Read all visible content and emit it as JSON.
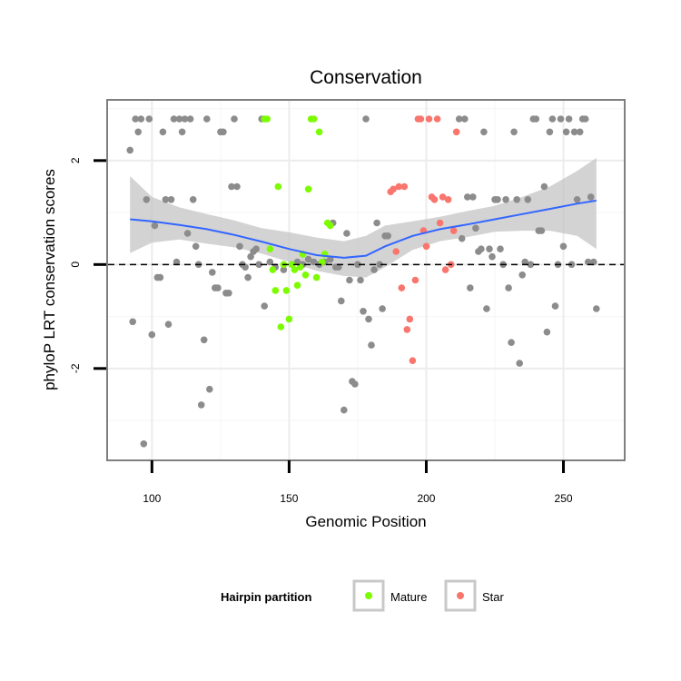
{
  "chart_data": {
    "type": "scatter",
    "title": "Conservation",
    "xlabel": "Genomic Position",
    "ylabel": "phyloP LRT conservation scores",
    "xlim": [
      84,
      272
    ],
    "ylim": [
      -3.75,
      3.15
    ],
    "xticks": [
      {
        "value": 100,
        "label": "100"
      },
      {
        "value": 150,
        "label": "150"
      },
      {
        "value": 200,
        "label": "200"
      },
      {
        "value": 250,
        "label": "250"
      }
    ],
    "yticks": [
      {
        "value": -2,
        "label": "-2"
      },
      {
        "value": 0,
        "label": "0"
      },
      {
        "value": 2,
        "label": "2"
      }
    ],
    "grid": true,
    "reference_line_y": 0,
    "legend": {
      "title": "Hairpin partition",
      "placement": "bottom",
      "entries": [
        {
          "key": "mature",
          "label": "Mature",
          "color": "#7cfc00"
        },
        {
          "key": "star",
          "label": "Star",
          "color": "#f8766d"
        }
      ]
    },
    "colors": {
      "other": "#8c8c8c",
      "mature": "#7cfc00",
      "star": "#f8766d",
      "smooth": "#3366ff",
      "band": "#c4c4c4"
    },
    "series": [
      {
        "key": "other",
        "points": [
          [
            92,
            2.2
          ],
          [
            93,
            -1.1
          ],
          [
            94,
            2.8
          ],
          [
            95,
            2.55
          ],
          [
            96,
            2.8
          ],
          [
            97,
            -3.45
          ],
          [
            98,
            1.25
          ],
          [
            99,
            2.8
          ],
          [
            100,
            -1.35
          ],
          [
            101,
            0.75
          ],
          [
            102,
            -0.25
          ],
          [
            103,
            -0.25
          ],
          [
            104,
            2.55
          ],
          [
            105,
            1.25
          ],
          [
            106,
            -1.15
          ],
          [
            107,
            1.25
          ],
          [
            108,
            2.8
          ],
          [
            109,
            0.05
          ],
          [
            110,
            2.8
          ],
          [
            111,
            2.55
          ],
          [
            112,
            2.8
          ],
          [
            113,
            0.6
          ],
          [
            114,
            2.8
          ],
          [
            115,
            1.25
          ],
          [
            116,
            0.35
          ],
          [
            117,
            0.0
          ],
          [
            118,
            -2.7
          ],
          [
            119,
            -1.45
          ],
          [
            120,
            2.8
          ],
          [
            121,
            -2.4
          ],
          [
            122,
            -0.15
          ],
          [
            123,
            -0.45
          ],
          [
            124,
            -0.45
          ],
          [
            125,
            2.55
          ],
          [
            126,
            2.55
          ],
          [
            127,
            -0.55
          ],
          [
            128,
            -0.55
          ],
          [
            129,
            1.5
          ],
          [
            130,
            2.8
          ],
          [
            131,
            1.5
          ],
          [
            132,
            0.35
          ],
          [
            133,
            0.0
          ],
          [
            134,
            -0.05
          ],
          [
            135,
            -0.25
          ],
          [
            136,
            0.15
          ],
          [
            137,
            0.25
          ],
          [
            138,
            0.3
          ],
          [
            139,
            0.0
          ],
          [
            140,
            2.8
          ],
          [
            141,
            -0.8
          ],
          [
            143,
            0.05
          ],
          [
            145,
            -0.05
          ],
          [
            148,
            -0.1
          ],
          [
            151,
            0.0
          ],
          [
            153,
            0.05
          ],
          [
            155,
            0.0
          ],
          [
            157,
            0.1
          ],
          [
            159,
            0.05
          ],
          [
            161,
            0.0
          ],
          [
            163,
            0.05
          ],
          [
            165,
            0.1
          ],
          [
            166,
            0.8
          ],
          [
            167,
            -0.05
          ],
          [
            168,
            -0.05
          ],
          [
            169,
            -0.7
          ],
          [
            170,
            -2.8
          ],
          [
            171,
            0.6
          ],
          [
            172,
            -0.3
          ],
          [
            173,
            -2.25
          ],
          [
            174,
            -2.3
          ],
          [
            175,
            0.0
          ],
          [
            176,
            -0.3
          ],
          [
            177,
            -0.9
          ],
          [
            178,
            2.8
          ],
          [
            179,
            -1.05
          ],
          [
            180,
            -1.55
          ],
          [
            181,
            -0.1
          ],
          [
            182,
            0.8
          ],
          [
            183,
            0.0
          ],
          [
            184,
            -0.85
          ],
          [
            185,
            0.55
          ],
          [
            186,
            0.55
          ],
          [
            212,
            2.8
          ],
          [
            213,
            0.5
          ],
          [
            214,
            2.8
          ],
          [
            215,
            1.3
          ],
          [
            216,
            -0.45
          ],
          [
            217,
            1.3
          ],
          [
            218,
            0.7
          ],
          [
            219,
            0.25
          ],
          [
            220,
            0.3
          ],
          [
            221,
            2.55
          ],
          [
            222,
            -0.85
          ],
          [
            223,
            0.3
          ],
          [
            224,
            0.15
          ],
          [
            225,
            1.25
          ],
          [
            226,
            1.25
          ],
          [
            227,
            0.3
          ],
          [
            228,
            0.0
          ],
          [
            229,
            1.25
          ],
          [
            230,
            -0.45
          ],
          [
            231,
            -1.5
          ],
          [
            232,
            2.55
          ],
          [
            233,
            1.25
          ],
          [
            234,
            -1.9
          ],
          [
            235,
            -0.2
          ],
          [
            236,
            0.05
          ],
          [
            237,
            1.25
          ],
          [
            238,
            0.0
          ],
          [
            239,
            2.8
          ],
          [
            240,
            2.8
          ],
          [
            241,
            0.65
          ],
          [
            242,
            0.65
          ],
          [
            243,
            1.5
          ],
          [
            244,
            -1.3
          ],
          [
            245,
            2.55
          ],
          [
            246,
            2.8
          ],
          [
            247,
            -0.8
          ],
          [
            248,
            0.0
          ],
          [
            249,
            2.8
          ],
          [
            250,
            0.35
          ],
          [
            251,
            2.55
          ],
          [
            252,
            2.8
          ],
          [
            253,
            0.0
          ],
          [
            254,
            2.55
          ],
          [
            255,
            1.25
          ],
          [
            256,
            2.55
          ],
          [
            257,
            2.8
          ],
          [
            258,
            2.8
          ],
          [
            259,
            0.05
          ],
          [
            260,
            1.3
          ],
          [
            261,
            0.05
          ],
          [
            262,
            -0.85
          ]
        ]
      },
      {
        "key": "mature",
        "points": [
          [
            141,
            2.8
          ],
          [
            142,
            2.8
          ],
          [
            143,
            0.3
          ],
          [
            144,
            -0.1
          ],
          [
            145,
            -0.5
          ],
          [
            146,
            1.5
          ],
          [
            147,
            -1.2
          ],
          [
            148,
            0.0
          ],
          [
            149,
            -0.5
          ],
          [
            150,
            -1.05
          ],
          [
            151,
            0.0
          ],
          [
            152,
            -0.1
          ],
          [
            153,
            -0.4
          ],
          [
            154,
            -0.05
          ],
          [
            155,
            0.2
          ],
          [
            156,
            -0.2
          ],
          [
            157,
            1.45
          ],
          [
            158,
            2.8
          ],
          [
            159,
            2.8
          ],
          [
            160,
            -0.25
          ],
          [
            161,
            2.55
          ],
          [
            162,
            0.05
          ],
          [
            163,
            0.2
          ],
          [
            164,
            0.8
          ],
          [
            165,
            0.75
          ]
        ]
      },
      {
        "key": "star",
        "points": [
          [
            187,
            1.4
          ],
          [
            188,
            1.45
          ],
          [
            189,
            0.25
          ],
          [
            190,
            1.5
          ],
          [
            191,
            -0.45
          ],
          [
            192,
            1.5
          ],
          [
            193,
            -1.25
          ],
          [
            194,
            -1.05
          ],
          [
            195,
            -1.85
          ],
          [
            196,
            -0.3
          ],
          [
            197,
            2.8
          ],
          [
            198,
            2.8
          ],
          [
            199,
            0.65
          ],
          [
            200,
            0.35
          ],
          [
            201,
            2.8
          ],
          [
            202,
            1.3
          ],
          [
            203,
            1.25
          ],
          [
            204,
            2.8
          ],
          [
            205,
            0.8
          ],
          [
            206,
            1.3
          ],
          [
            207,
            -0.1
          ],
          [
            208,
            1.25
          ],
          [
            209,
            0.0
          ],
          [
            210,
            0.65
          ],
          [
            211,
            2.55
          ]
        ]
      }
    ],
    "smooth": {
      "x": [
        92,
        100,
        110,
        120,
        130,
        140,
        150,
        160,
        170,
        178,
        185,
        195,
        205,
        215,
        225,
        235,
        245,
        255,
        262
      ],
      "y": [
        0.87,
        0.83,
        0.76,
        0.68,
        0.57,
        0.44,
        0.3,
        0.18,
        0.13,
        0.17,
        0.35,
        0.55,
        0.68,
        0.77,
        0.87,
        0.97,
        1.07,
        1.17,
        1.23
      ],
      "lower": [
        0.22,
        0.42,
        0.48,
        0.4,
        0.33,
        0.21,
        0.05,
        -0.12,
        -0.22,
        -0.25,
        -0.05,
        0.28,
        0.45,
        0.53,
        0.63,
        0.65,
        0.65,
        0.55,
        0.3
      ],
      "upper": [
        1.7,
        1.3,
        1.1,
        0.97,
        0.85,
        0.7,
        0.62,
        0.52,
        0.45,
        0.55,
        0.75,
        0.83,
        0.92,
        1.03,
        1.13,
        1.3,
        1.5,
        1.8,
        2.05
      ]
    }
  }
}
